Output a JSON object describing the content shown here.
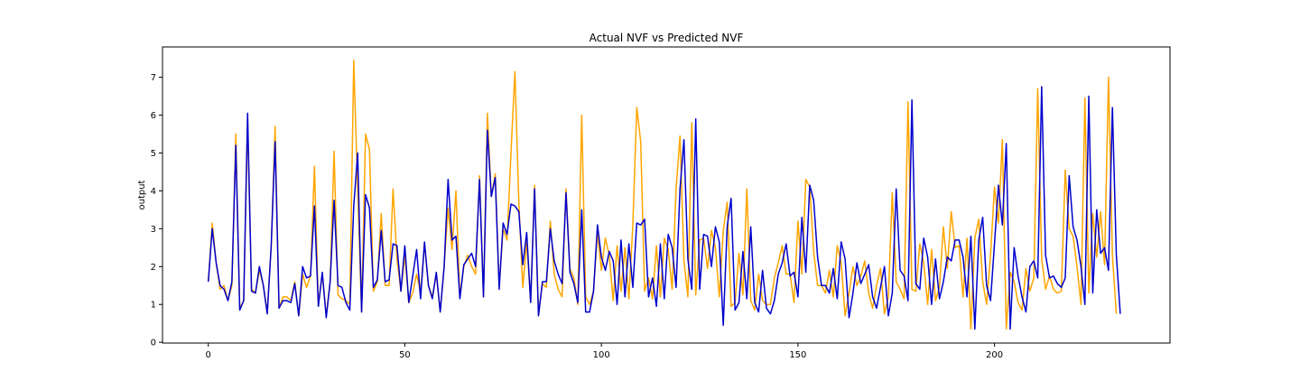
{
  "chart_data": {
    "type": "line",
    "title": "Actual NVF vs Predicted NVF",
    "xlabel": "",
    "ylabel": "output",
    "xlim": [
      -11.65,
      244.65
    ],
    "ylim": [
      -0.02,
      7.8
    ],
    "xticks": [
      0,
      50,
      100,
      150,
      200
    ],
    "yticks": [
      0,
      1,
      2,
      3,
      4,
      5,
      6,
      7
    ],
    "grid": false,
    "legend": "none",
    "series": [
      {
        "color": "#ffa500",
        "values": [
          1.6,
          3.15,
          2.1,
          1.4,
          1.5,
          1.1,
          1.5,
          5.5,
          0.9,
          1.1,
          5.8,
          1.4,
          1.3,
          1.9,
          1.5,
          0.8,
          2.5,
          5.7,
          0.9,
          1.2,
          1.2,
          1.1,
          1.6,
          0.7,
          1.8,
          1.45,
          1.75,
          4.65,
          1.0,
          1.8,
          0.7,
          1.6,
          5.05,
          1.25,
          1.15,
          1.1,
          1.0,
          7.45,
          4.0,
          0.8,
          5.5,
          5.1,
          1.35,
          1.6,
          3.4,
          1.5,
          1.5,
          4.05,
          2.2,
          1.35,
          2.3,
          1.05,
          1.3,
          1.8,
          1.3,
          2.6,
          1.5,
          1.2,
          1.8,
          0.8,
          2.0,
          3.55,
          2.45,
          4.0,
          1.2,
          2.0,
          2.3,
          2.0,
          1.8,
          4.4,
          1.2,
          6.05,
          3.85,
          4.45,
          1.5,
          3.0,
          2.7,
          5.0,
          7.15,
          3.7,
          1.45,
          2.65,
          1.1,
          4.15,
          0.75,
          1.55,
          1.45,
          3.2,
          1.8,
          1.4,
          1.2,
          4.05,
          1.95,
          1.7,
          1.0,
          6.0,
          1.2,
          1.0,
          1.35,
          2.9,
          1.9,
          2.75,
          2.3,
          1.1,
          2.55,
          1.35,
          2.5,
          1.15,
          3.1,
          6.2,
          5.3,
          1.35,
          1.7,
          1.15,
          2.55,
          1.2,
          2.75,
          2.45,
          1.4,
          4.05,
          5.45,
          2.15,
          1.2,
          5.8,
          1.25,
          2.7,
          2.75,
          1.95,
          2.95,
          2.5,
          1.2,
          2.95,
          3.7,
          0.95,
          1.05,
          2.35,
          1.25,
          4.05,
          1.1,
          0.85,
          1.8,
          1.1,
          1.0,
          1.0,
          1.7,
          2.1,
          2.55,
          1.8,
          1.8,
          1.05,
          3.2,
          1.8,
          4.3,
          4.1,
          2.4,
          1.5,
          1.5,
          1.3,
          1.9,
          1.2,
          2.55,
          2.1,
          0.7,
          1.3,
          2.0,
          1.5,
          1.75,
          2.15,
          1.3,
          0.9,
          1.5,
          1.95,
          0.75,
          1.2,
          3.95,
          1.6,
          1.4,
          1.15,
          6.35,
          1.4,
          1.35,
          2.6,
          2.1,
          1.0,
          2.45,
          1.1,
          1.45,
          3.05,
          1.95,
          3.45,
          2.5,
          2.55,
          1.2,
          2.75,
          0.35,
          2.75,
          3.25,
          1.6,
          1.0,
          2.3,
          4.1,
          3.15,
          5.35,
          0.35,
          1.85,
          1.6,
          1.05,
          0.85,
          1.95,
          1.35,
          1.7,
          6.7,
          2.2,
          1.4,
          1.75,
          1.4,
          1.3,
          1.35,
          4.55,
          3.0,
          2.8,
          2.0,
          1.0,
          6.45,
          1.3,
          3.4,
          2.25,
          3.45,
          2.05,
          7.0,
          2.3,
          0.75
        ]
      },
      {
        "color": "#0000cd",
        "values": [
          1.6,
          3.0,
          2.1,
          1.5,
          1.4,
          1.1,
          1.6,
          5.2,
          0.85,
          1.1,
          6.05,
          1.35,
          1.3,
          2.0,
          1.5,
          0.75,
          2.55,
          5.3,
          0.9,
          1.1,
          1.1,
          1.05,
          1.55,
          0.7,
          2.0,
          1.7,
          1.75,
          3.6,
          0.95,
          1.85,
          0.65,
          1.6,
          3.75,
          1.5,
          1.45,
          1.05,
          0.85,
          3.6,
          5.0,
          0.8,
          3.9,
          3.55,
          1.45,
          1.65,
          2.95,
          1.6,
          1.65,
          2.6,
          2.55,
          1.35,
          2.55,
          1.05,
          1.75,
          2.45,
          1.15,
          2.65,
          1.5,
          1.15,
          1.85,
          0.8,
          2.0,
          4.3,
          2.7,
          2.8,
          1.15,
          2.05,
          2.2,
          2.35,
          2.0,
          4.3,
          1.2,
          5.6,
          3.85,
          4.35,
          1.4,
          3.15,
          2.85,
          3.65,
          3.6,
          3.45,
          2.05,
          2.9,
          1.05,
          4.05,
          0.7,
          1.6,
          1.6,
          3.0,
          2.15,
          1.8,
          1.55,
          3.95,
          1.85,
          1.55,
          1.05,
          3.5,
          0.8,
          0.8,
          1.35,
          3.1,
          2.25,
          1.9,
          2.4,
          2.15,
          1.0,
          2.7,
          1.2,
          2.6,
          1.45,
          3.15,
          3.1,
          3.25,
          1.2,
          1.7,
          0.95,
          2.6,
          1.15,
          2.85,
          2.5,
          1.45,
          4.05,
          5.35,
          2.2,
          1.4,
          5.9,
          1.4,
          2.85,
          2.8,
          2.0,
          3.05,
          2.65,
          0.45,
          3.05,
          3.8,
          0.85,
          1.05,
          2.4,
          1.15,
          3.05,
          1.05,
          0.8,
          1.9,
          0.9,
          0.75,
          1.1,
          1.8,
          2.1,
          2.6,
          1.75,
          1.85,
          1.2,
          3.3,
          1.85,
          4.15,
          3.75,
          2.25,
          1.5,
          1.5,
          1.3,
          1.95,
          1.15,
          2.65,
          2.2,
          0.65,
          1.3,
          2.1,
          1.55,
          1.8,
          2.05,
          1.2,
          0.9,
          1.45,
          2.0,
          0.7,
          1.3,
          4.05,
          1.9,
          1.75,
          1.1,
          6.4,
          1.55,
          1.4,
          2.75,
          2.25,
          1.0,
          2.2,
          1.15,
          1.6,
          2.25,
          2.15,
          2.7,
          2.7,
          2.25,
          1.2,
          2.8,
          0.35,
          2.7,
          3.3,
          1.5,
          1.1,
          2.6,
          4.15,
          3.1,
          5.25,
          0.35,
          2.5,
          1.75,
          1.2,
          0.8,
          2.0,
          2.15,
          1.7,
          6.75,
          2.3,
          1.7,
          1.75,
          1.55,
          1.45,
          1.7,
          4.4,
          3.05,
          2.7,
          2.0,
          1.0,
          6.5,
          1.3,
          3.5,
          2.35,
          2.5,
          1.9,
          6.2,
          2.3,
          0.75
        ]
      }
    ]
  }
}
